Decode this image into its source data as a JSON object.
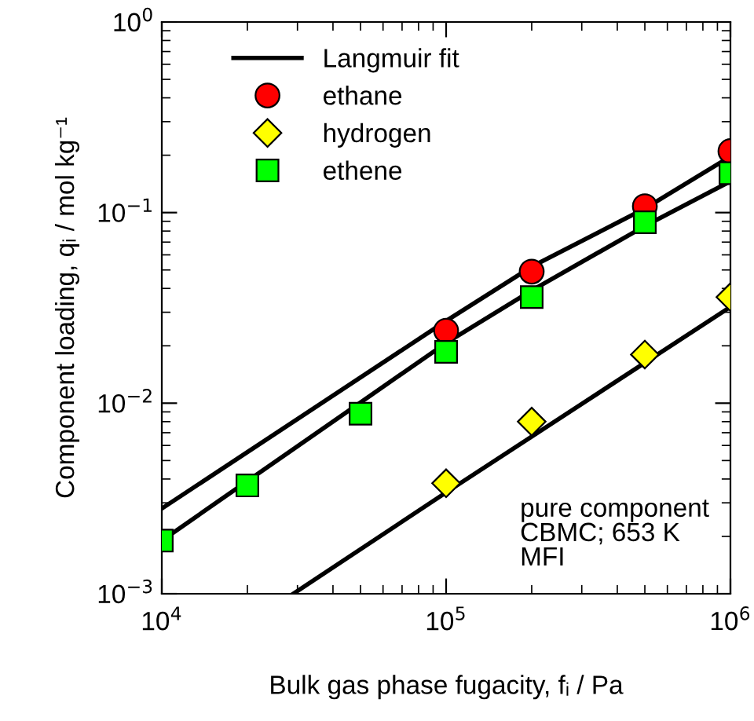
{
  "chart_data": {
    "type": "scatter",
    "xlabel": "Bulk gas phase fugacity, fᵢ / Pa",
    "ylabel": "Component loading, qᵢ / mol kg⁻¹",
    "log": "xy",
    "xlim": [
      10000,
      1000000
    ],
    "ylim": [
      0.001,
      1
    ],
    "xticks": [
      {
        "value": 10000,
        "label": "10$^{4}$"
      },
      {
        "value": 100000,
        "label": "10$^{5}$"
      },
      {
        "value": 1000000,
        "label": "10$^{6}$"
      }
    ],
    "yticks": [
      {
        "value": 0.001,
        "label": "10$^{−3}$"
      },
      {
        "value": 0.01,
        "label": "10$^{−2}$"
      },
      {
        "value": 0.1,
        "label": "10$^{−1}$"
      },
      {
        "value": 1,
        "label": "10$^{0}$"
      }
    ],
    "grid": false,
    "legend": "top left",
    "series": [
      {
        "type": "line",
        "name": "Langmuir fit",
        "color": "#000000",
        "marker": "none",
        "line_style": "solid",
        "x": [
          10000,
          100000,
          200000,
          500000,
          1000000
        ],
        "values": [
          0.0028,
          0.027,
          0.052,
          0.105,
          0.197
        ]
      },
      {
        "type": "line",
        "color": "#000000",
        "marker": "none",
        "line_style": "solid",
        "x": [
          10000,
          100000,
          200000,
          500000,
          1000000
        ],
        "values": [
          0.0019,
          0.0207,
          0.039,
          0.085,
          0.146
        ]
      },
      {
        "type": "line",
        "color": "#000000",
        "marker": "none",
        "line_style": "solid",
        "x": [
          29000,
          100000,
          1000000
        ],
        "values": [
          0.001,
          0.0034,
          0.032
        ]
      },
      {
        "name": "ethane",
        "color": "#ff0000",
        "marker": "circle",
        "x": [
          100000,
          200000,
          500000,
          1000000
        ],
        "values": [
          0.024,
          0.049,
          0.108,
          0.21
        ]
      },
      {
        "name": "hydrogen",
        "color": "#ffff00",
        "marker": "diamond",
        "x": [
          100000,
          200000,
          500000,
          1000000
        ],
        "values": [
          0.0038,
          0.008,
          0.018,
          0.036
        ]
      },
      {
        "name": "ethene",
        "color": "#00ff00",
        "marker": "square",
        "x": [
          10000,
          20000,
          50000,
          100000,
          200000,
          500000,
          1000000
        ],
        "values": [
          0.0019,
          0.0037,
          0.0088,
          0.0186,
          0.036,
          0.089,
          0.161
        ]
      }
    ],
    "annotations": [
      "pure component\nCBMC; 653 K\nMFI"
    ]
  }
}
